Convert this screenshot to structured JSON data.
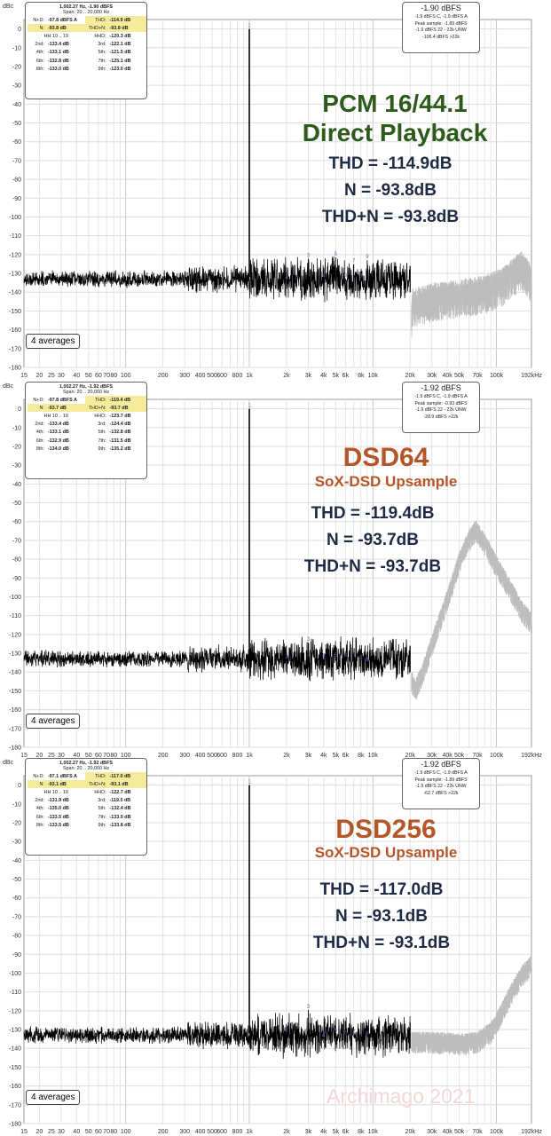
{
  "common": {
    "dbc_label": "dBc",
    "y_ticks": [
      0,
      -10,
      -20,
      -30,
      -40,
      -50,
      -60,
      -70,
      -80,
      -90,
      -100,
      -110,
      -120,
      -130,
      -140,
      -150,
      -160,
      -170,
      -180
    ],
    "ylim": [
      -180,
      5
    ],
    "x_ticks": [
      {
        "v": 15,
        "l": "15"
      },
      {
        "v": 20,
        "l": "20"
      },
      {
        "v": 25,
        "l": "25"
      },
      {
        "v": 30,
        "l": "30"
      },
      {
        "v": 40,
        "l": "40"
      },
      {
        "v": 50,
        "l": "50"
      },
      {
        "v": 60,
        "l": "60"
      },
      {
        "v": 70,
        "l": "70"
      },
      {
        "v": 80,
        "l": "80"
      },
      {
        "v": 100,
        "l": "100"
      },
      {
        "v": 200,
        "l": "200"
      },
      {
        "v": 300,
        "l": "300"
      },
      {
        "v": 400,
        "l": "400"
      },
      {
        "v": 500,
        "l": "500"
      },
      {
        "v": 600,
        "l": "600"
      },
      {
        "v": 800,
        "l": "800"
      },
      {
        "v": 1000,
        "l": "1k"
      },
      {
        "v": 2000,
        "l": "2k"
      },
      {
        "v": 3000,
        "l": "3k"
      },
      {
        "v": 4000,
        "l": "4k"
      },
      {
        "v": 5000,
        "l": "5k"
      },
      {
        "v": 6000,
        "l": "6k"
      },
      {
        "v": 8000,
        "l": "8k"
      },
      {
        "v": 10000,
        "l": "10k"
      },
      {
        "v": 20000,
        "l": "20k"
      },
      {
        "v": 30000,
        "l": "30k"
      },
      {
        "v": 40000,
        "l": "40k"
      },
      {
        "v": 50000,
        "l": "50k"
      },
      {
        "v": 70000,
        "l": "70k"
      },
      {
        "v": 100000,
        "l": "100k"
      },
      {
        "v": 192000,
        "l": "192kHz"
      }
    ],
    "xlim": [
      15,
      192000
    ],
    "averages_label": "4 averages",
    "watermark": "Archimago 2021"
  },
  "chart_data": [
    {
      "type": "line",
      "title": "PCM 16/44.1",
      "subtitle": "Direct Playback",
      "stats": [
        "THD = -114.9dB",
        "N = -93.8dB",
        "THD+N = -93.8dB"
      ],
      "fundamental": {
        "freq_hz": 1000,
        "level_dbc": 0,
        "label": "1"
      },
      "harmonics": [
        {
          "label": "2",
          "freq_hz": 2000,
          "level_dbc": -133.4
        },
        {
          "label": "3",
          "freq_hz": 3000,
          "level_dbc": -122.1
        },
        {
          "label": "4",
          "freq_hz": 4000,
          "level_dbc": -133.1
        },
        {
          "label": "5",
          "freq_hz": 5000,
          "level_dbc": -121.5
        },
        {
          "label": "6",
          "freq_hz": 6000,
          "level_dbc": -132.8
        },
        {
          "label": "7",
          "freq_hz": 7000,
          "level_dbc": -125.1
        },
        {
          "label": "8",
          "freq_hz": 8000,
          "level_dbc": -133.0
        },
        {
          "label": "9",
          "freq_hz": 9000,
          "level_dbc": -123.0
        }
      ],
      "noise_floor_dbc": -133,
      "ultrasonic_profile": [
        [
          20500,
          -152
        ],
        [
          21000,
          -145
        ],
        [
          30000,
          -142
        ],
        [
          50000,
          -140
        ],
        [
          80000,
          -138
        ],
        [
          110000,
          -134
        ],
        [
          140000,
          -128
        ],
        [
          160000,
          -125
        ],
        [
          192000,
          -132
        ]
      ],
      "ultrasonic_spread_db": 14,
      "measurement": {
        "freq_line": "1,002.27 Hz, -1.90 dBFS",
        "span_line": "Span: 20 .. 20,000 Hz",
        "rows": [
          [
            "N+D:",
            "-97.8 dBFS A",
            "THD:",
            "-114.9 dB",
            "hl2"
          ],
          [
            "N:",
            "-93.8 dB",
            "THD+N:",
            "-93.8 dB",
            "hl"
          ],
          [
            "HH 10 .. 19",
            "",
            "HHD:",
            "-120.3 dB",
            ""
          ],
          [
            "2nd:",
            "-133.4 dB",
            "3rd:",
            "-122.1 dB",
            ""
          ],
          [
            "4th:",
            "-133.1 dB",
            "5th:",
            "-121.5 dB",
            ""
          ],
          [
            "6th:",
            "-132.8 dB",
            "7th:",
            "-125.1 dB",
            ""
          ],
          [
            "8th:",
            "-133.0 dB",
            "9th:",
            "-123.0 dB",
            ""
          ]
        ]
      },
      "level_box": [
        "-1.90 dBFS",
        "-1.9 dBFS C, -1.9 dBFS A",
        "Peak sample: -1.89 dBFS",
        "-1.9 dBFS 22 - 22k UNW",
        "-106.4 dBFS >22k"
      ]
    },
    {
      "type": "line",
      "title": "DSD64",
      "subtitle": "SoX-DSD Upsample",
      "stats": [
        "THD = -119.4dB",
        "N = -93.7dB",
        "THD+N = -93.7dB"
      ],
      "fundamental": {
        "freq_hz": 1000,
        "level_dbc": 0,
        "label": "1"
      },
      "harmonics": [
        {
          "label": "2",
          "freq_hz": 2000,
          "level_dbc": -133.4
        },
        {
          "label": "3",
          "freq_hz": 3000,
          "level_dbc": -124.4
        },
        {
          "label": "4",
          "freq_hz": 4000,
          "level_dbc": -133.1
        },
        {
          "label": "5",
          "freq_hz": 5000,
          "level_dbc": -132.8
        },
        {
          "label": "6",
          "freq_hz": 6000,
          "level_dbc": -132.9
        },
        {
          "label": "7",
          "freq_hz": 7000,
          "level_dbc": -131.5
        },
        {
          "label": "8",
          "freq_hz": 8000,
          "level_dbc": -134.0
        },
        {
          "label": "9",
          "freq_hz": 9000,
          "level_dbc": -135.2
        }
      ],
      "noise_floor_dbc": -133,
      "ultrasonic_profile": [
        [
          20500,
          -143
        ],
        [
          22000,
          -148
        ],
        [
          25000,
          -140
        ],
        [
          30000,
          -124
        ],
        [
          40000,
          -100
        ],
        [
          50000,
          -80
        ],
        [
          60000,
          -68
        ],
        [
          68000,
          -63
        ],
        [
          80000,
          -70
        ],
        [
          100000,
          -82
        ],
        [
          130000,
          -95
        ],
        [
          160000,
          -106
        ],
        [
          192000,
          -112
        ]
      ],
      "ultrasonic_spread_db": 8,
      "measurement": {
        "freq_line": "1,002.27 Hz, -1.92 dBFS",
        "span_line": "Span: 20 .. 20,000 Hz",
        "rows": [
          [
            "N+D:",
            "-97.8 dBFS A",
            "THD:",
            "-119.4 dB",
            "hl2"
          ],
          [
            "N:",
            "-93.7 dB",
            "THD+N:",
            "-93.7 dB",
            "hl"
          ],
          [
            "HH 10 .. 19",
            "",
            "HHD:",
            "-123.7 dB",
            ""
          ],
          [
            "2nd:",
            "-133.4 dB",
            "3rd:",
            "-124.4 dB",
            ""
          ],
          [
            "4th:",
            "-133.1 dB",
            "5th:",
            "-132.8 dB",
            ""
          ],
          [
            "6th:",
            "-132.9 dB",
            "7th:",
            "-131.5 dB",
            ""
          ],
          [
            "8th:",
            "-134.0 dB",
            "9th:",
            "-135.2 dB",
            ""
          ]
        ]
      },
      "level_box": [
        "-1.92 dBFS",
        "-1.9 dBFS C, -1.9 dBFS A",
        "Peak sample: -0.93 dBFS",
        "-1.9 dBFS 22 - 22k UNW",
        "-28.9 dBFS >22k"
      ]
    },
    {
      "type": "line",
      "title": "DSD256",
      "subtitle": "SoX-DSD Upsample",
      "stats": [
        "THD = -117.0dB",
        "N = -93.1dB",
        "THD+N = -93.1dB"
      ],
      "fundamental": {
        "freq_hz": 1000,
        "level_dbc": 0,
        "label": "1"
      },
      "harmonics": [
        {
          "label": "2",
          "freq_hz": 2000,
          "level_dbc": -131.9
        },
        {
          "label": "3",
          "freq_hz": 3000,
          "level_dbc": -119.5
        },
        {
          "label": "4",
          "freq_hz": 4000,
          "level_dbc": -135.0
        },
        {
          "label": "5",
          "freq_hz": 5000,
          "level_dbc": -132.4
        },
        {
          "label": "6",
          "freq_hz": 6000,
          "level_dbc": -133.5
        },
        {
          "label": "7",
          "freq_hz": 7000,
          "level_dbc": -133.0
        },
        {
          "label": "8",
          "freq_hz": 8000,
          "level_dbc": -133.5
        },
        {
          "label": "9",
          "freq_hz": 9000,
          "level_dbc": -133.8
        }
      ],
      "noise_floor_dbc": -133,
      "ultrasonic_profile": [
        [
          20500,
          -135
        ],
        [
          30000,
          -135
        ],
        [
          50000,
          -136
        ],
        [
          70000,
          -135
        ],
        [
          90000,
          -130
        ],
        [
          110000,
          -120
        ],
        [
          130000,
          -110
        ],
        [
          160000,
          -100
        ],
        [
          192000,
          -94
        ]
      ],
      "ultrasonic_spread_db": 8,
      "measurement": {
        "freq_line": "1,002.27 Hz, -1.92 dBFS",
        "span_line": "Span: 20 .. 20,000 Hz",
        "rows": [
          [
            "N+D:",
            "-97.1 dBFS A",
            "THD:",
            "-117.0 dB",
            "hl2"
          ],
          [
            "N:",
            "-93.1 dB",
            "THD+N:",
            "-93.1 dB",
            "hl"
          ],
          [
            "HH 10 .. 19",
            "",
            "HHD:",
            "-122.7 dB",
            ""
          ],
          [
            "2nd:",
            "-131.9 dB",
            "3rd:",
            "-119.5 dB",
            ""
          ],
          [
            "4th:",
            "-135.0 dB",
            "5th:",
            "-132.4 dB",
            ""
          ],
          [
            "6th:",
            "-133.5 dB",
            "7th:",
            "-133.0 dB",
            ""
          ],
          [
            "8th:",
            "-133.5 dB",
            "9th:",
            "-133.8 dB",
            ""
          ]
        ]
      },
      "level_box": [
        "-1.92 dBFS",
        "-1.9 dBFS C, -1.9 dBFS A",
        "Peak sample: -1.89 dBFS",
        "-1.9 dBFS 22 - 22k UNW",
        "-62.7 dBFS >22k"
      ]
    }
  ],
  "title_colors": [
    "#2e5a1c",
    "#b5562a",
    "#b5562a"
  ],
  "trace_color": "#000000",
  "ultrasonic_color": "#bdbdbd",
  "harmonic_label_color": "#5a66c8"
}
